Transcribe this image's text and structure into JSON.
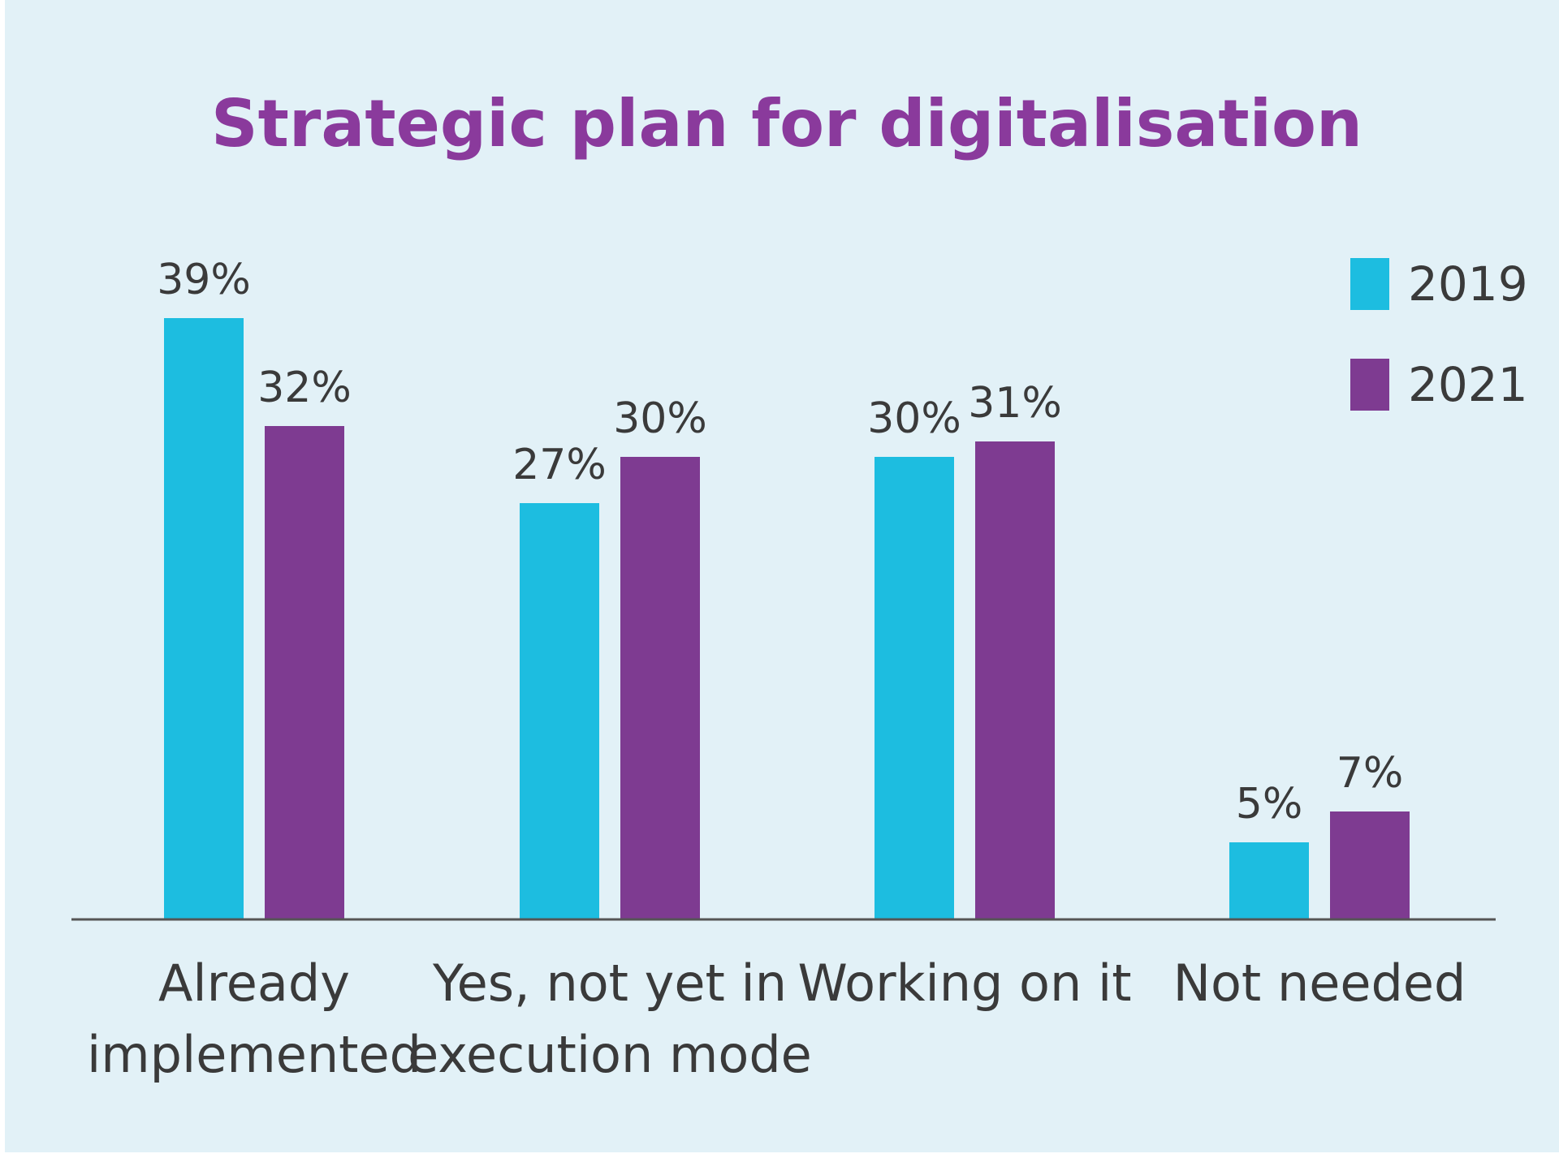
{
  "chart_data": {
    "type": "bar",
    "title": "Strategic plan for digitalisation",
    "categories": [
      [
        "Already",
        "implemented"
      ],
      [
        "Yes, not yet in",
        "execution mode"
      ],
      [
        "Working on it"
      ],
      [
        "Not needed"
      ]
    ],
    "series": [
      {
        "name": "2019",
        "color": "#1dbde0",
        "values": [
          39,
          27,
          30,
          5
        ],
        "labels": [
          "39%",
          "27%",
          "30%",
          "5%"
        ]
      },
      {
        "name": "2021",
        "color": "#7e3b91",
        "values": [
          32,
          30,
          31,
          7
        ],
        "labels": [
          "32%",
          "30%",
          "31%",
          "7%"
        ]
      }
    ],
    "ylim": [
      0,
      39
    ],
    "grid": false,
    "legend": "top-right",
    "title_color": "#8a3a9c",
    "text_color": "#3a3a3a",
    "axis_color": "#555555"
  }
}
